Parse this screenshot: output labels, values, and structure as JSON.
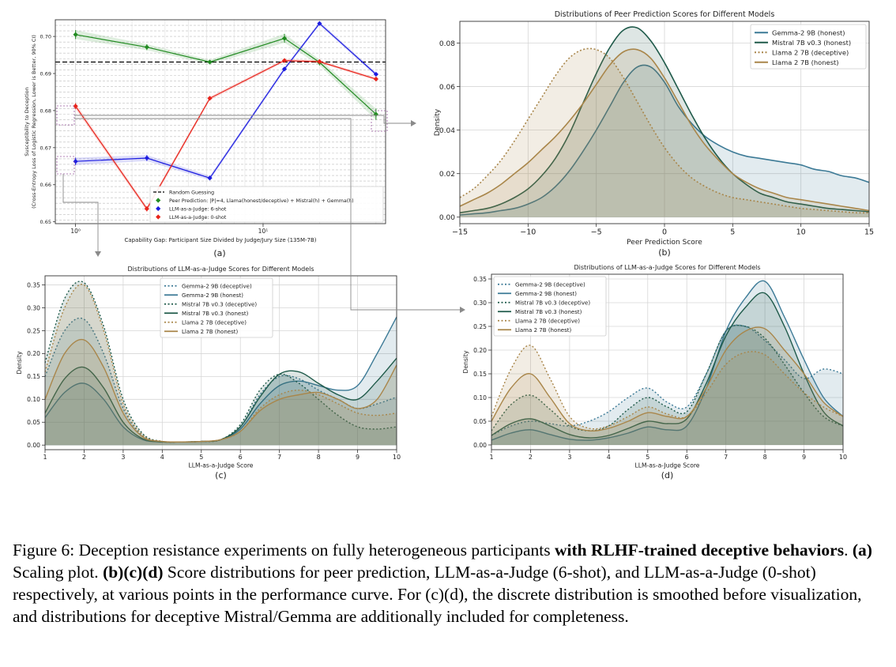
{
  "colors": {
    "green": "#228b22",
    "red": "#e8231a",
    "blue": "#1c1ce0",
    "gemma": "#3c7a96",
    "mistral": "#1f5a4a",
    "llama": "#a9864a",
    "grid": "#d6d6d6"
  },
  "chart_data": [
    {
      "id": "a",
      "type": "line",
      "panel_label": "(a)",
      "xscale": "log",
      "xlabel": "Capability Gap: Participant Size Divided by Judge/Jury Size (135M-7B)",
      "ylabel_lines": [
        "Susceptibility to Deception",
        "(Cross-Entropy Loss of Logistic Regression, Lower is Better, 90% CI)"
      ],
      "xlim": [
        0.78,
        45
      ],
      "ylim": [
        0.6495,
        0.7045
      ],
      "yticks": [
        0.65,
        0.66,
        0.67,
        0.68,
        0.69,
        0.7
      ],
      "ytick_labels": [
        "0.65",
        "0.66",
        "0.67",
        "0.68",
        "0.69",
        "0.70"
      ],
      "xticks": [
        1,
        10
      ],
      "xtick_labels": [
        "10⁰",
        "10¹"
      ],
      "random_guessing": 0.6931,
      "legend": [
        "Random Guessing",
        "Peer Prediction: |P|=4, Llama(honest/deceptive) + Mistral(h) + Gemma(h)",
        "LLM-as-a-Judge: 6-shot",
        "LLM-as-a-Judge: 0-shot"
      ],
      "series": [
        {
          "name": "Peer Prediction",
          "color": "green",
          "x": [
            1,
            2.4,
            5.2,
            13,
            20,
            40
          ],
          "values": [
            0.7005,
            0.6971,
            0.6931,
            0.6995,
            0.693,
            0.679
          ],
          "err": [
            0.0012,
            0.0008,
            0.0006,
            0.0012,
            0.0008,
            0.0015
          ]
        },
        {
          "name": "LLM-as-a-Judge: 6-shot",
          "color": "blue",
          "x": [
            1,
            2.4,
            5.2,
            13,
            20,
            40
          ],
          "values": [
            0.6663,
            0.6672,
            0.6618,
            0.6912,
            0.7035,
            0.6898
          ],
          "err": [
            0.001,
            0.0008,
            0.0006,
            0.0005,
            0.0005,
            0.0005
          ]
        },
        {
          "name": "LLM-as-a-Judge: 0-shot",
          "color": "red",
          "x": [
            1,
            2.4,
            5.2,
            13,
            20,
            40
          ],
          "values": [
            0.6812,
            0.6535,
            0.6833,
            0.6935,
            0.6932,
            0.6885
          ],
          "err": [
            0.0008,
            0.0007,
            0.0005,
            0.0004,
            0.0004,
            0.0004
          ]
        }
      ]
    },
    {
      "id": "b",
      "type": "area",
      "title": "Distributions of Peer Prediction Scores for Different Models",
      "panel_label": "(b)",
      "xlabel": "Peer Prediction Score",
      "ylabel": "Density",
      "xlim": [
        -15,
        15
      ],
      "ylim": [
        -0.003,
        0.09
      ],
      "xticks": [
        -15,
        -10,
        -5,
        0,
        5,
        10,
        15
      ],
      "xtick_labels": [
        "−15",
        "−10",
        "−5",
        "0",
        "5",
        "10",
        "15"
      ],
      "yticks": [
        0,
        0.02,
        0.04,
        0.06,
        0.08
      ],
      "ytick_labels": [
        "0.00",
        "0.02",
        "0.04",
        "0.06",
        "0.08"
      ],
      "x": [
        -15,
        -14,
        -13,
        -12,
        -11,
        -10,
        -9,
        -8,
        -7,
        -6,
        -5,
        -4,
        -3,
        -2,
        -1,
        0,
        1,
        2,
        3,
        4,
        5,
        6,
        7,
        8,
        9,
        10,
        11,
        12,
        13,
        14,
        15
      ],
      "legend_pos": "top-right",
      "series": [
        {
          "name": "Gemma-2 9B (honest)",
          "color": "gemma",
          "dash": "solid",
          "values": [
            0.001,
            0.0015,
            0.002,
            0.003,
            0.004,
            0.006,
            0.009,
            0.014,
            0.021,
            0.03,
            0.04,
            0.051,
            0.062,
            0.069,
            0.069,
            0.062,
            0.051,
            0.043,
            0.037,
            0.033,
            0.03,
            0.028,
            0.027,
            0.026,
            0.025,
            0.024,
            0.022,
            0.021,
            0.019,
            0.018,
            0.016
          ]
        },
        {
          "name": "Mistral 7B v0.3 (honest)",
          "color": "mistral",
          "dash": "solid",
          "values": [
            0.002,
            0.003,
            0.004,
            0.006,
            0.009,
            0.013,
            0.019,
            0.027,
            0.038,
            0.052,
            0.066,
            0.078,
            0.086,
            0.087,
            0.081,
            0.071,
            0.059,
            0.047,
            0.036,
            0.027,
            0.02,
            0.015,
            0.011,
            0.009,
            0.007,
            0.006,
            0.005,
            0.004,
            0.0035,
            0.003,
            0.0025
          ]
        },
        {
          "name": "Llama 2 7B (deceptive)",
          "color": "llama",
          "dash": "dotted",
          "values": [
            0.009,
            0.013,
            0.019,
            0.026,
            0.035,
            0.045,
            0.055,
            0.065,
            0.073,
            0.077,
            0.077,
            0.073,
            0.064,
            0.053,
            0.042,
            0.032,
            0.024,
            0.018,
            0.014,
            0.011,
            0.009,
            0.008,
            0.007,
            0.006,
            0.005,
            0.004,
            0.0035,
            0.003,
            0.0025,
            0.002,
            0.002
          ]
        },
        {
          "name": "Llama 2 7B (honest)",
          "color": "llama",
          "dash": "solid",
          "values": [
            0.005,
            0.008,
            0.011,
            0.015,
            0.02,
            0.025,
            0.031,
            0.037,
            0.044,
            0.052,
            0.061,
            0.07,
            0.076,
            0.077,
            0.073,
            0.064,
            0.053,
            0.042,
            0.033,
            0.026,
            0.02,
            0.016,
            0.013,
            0.011,
            0.009,
            0.008,
            0.007,
            0.006,
            0.005,
            0.004,
            0.003
          ]
        }
      ]
    },
    {
      "id": "c",
      "type": "area",
      "title": "Distributions of LLM-as-a-Judge Scores for Different Models",
      "panel_label": "(c)",
      "xlabel": "LLM-as-a-Judge Score",
      "ylabel": "Density",
      "xlim": [
        1,
        10
      ],
      "ylim": [
        -0.01,
        0.37
      ],
      "xticks": [
        1,
        2,
        3,
        4,
        5,
        6,
        7,
        8,
        9,
        10
      ],
      "xtick_labels": [
        "1",
        "2",
        "3",
        "4",
        "5",
        "6",
        "7",
        "8",
        "9",
        "10"
      ],
      "yticks": [
        0,
        0.05,
        0.1,
        0.15,
        0.2,
        0.25,
        0.3,
        0.35
      ],
      "ytick_labels": [
        "0.00",
        "0.05",
        "0.10",
        "0.15",
        "0.20",
        "0.25",
        "0.30",
        "0.35"
      ],
      "x": [
        1,
        1.5,
        2,
        2.5,
        3,
        3.5,
        4,
        4.5,
        5,
        5.5,
        6,
        6.5,
        7,
        7.5,
        8,
        8.5,
        9,
        9.5,
        10
      ],
      "legend_pos": "top-center",
      "series": [
        {
          "name": "Gemma-2 9B (deceptive)",
          "color": "gemma",
          "dash": "dotted",
          "values": [
            0.15,
            0.25,
            0.275,
            0.2,
            0.08,
            0.02,
            0.008,
            0.007,
            0.008,
            0.012,
            0.04,
            0.11,
            0.15,
            0.145,
            0.12,
            0.1,
            0.08,
            0.09,
            0.105
          ]
        },
        {
          "name": "Gemma-2 9B (honest)",
          "color": "gemma",
          "dash": "solid",
          "values": [
            0.06,
            0.115,
            0.135,
            0.1,
            0.04,
            0.012,
            0.007,
            0.007,
            0.008,
            0.012,
            0.035,
            0.09,
            0.13,
            0.14,
            0.13,
            0.12,
            0.13,
            0.2,
            0.28
          ]
        },
        {
          "name": "Mistral 7B v0.3 (deceptive)",
          "color": "mistral",
          "dash": "dotted",
          "values": [
            0.18,
            0.32,
            0.355,
            0.26,
            0.1,
            0.025,
            0.008,
            0.007,
            0.008,
            0.012,
            0.045,
            0.12,
            0.155,
            0.135,
            0.1,
            0.065,
            0.04,
            0.035,
            0.04
          ]
        },
        {
          "name": "Mistral 7B v0.3 (honest)",
          "color": "mistral",
          "dash": "solid",
          "values": [
            0.07,
            0.145,
            0.17,
            0.125,
            0.05,
            0.014,
            0.007,
            0.007,
            0.008,
            0.012,
            0.04,
            0.105,
            0.155,
            0.16,
            0.135,
            0.11,
            0.1,
            0.14,
            0.19
          ]
        },
        {
          "name": "Llama 2 7B (deceptive)",
          "color": "llama",
          "dash": "dotted",
          "values": [
            0.16,
            0.3,
            0.35,
            0.25,
            0.09,
            0.022,
            0.008,
            0.007,
            0.008,
            0.012,
            0.03,
            0.08,
            0.11,
            0.12,
            0.11,
            0.09,
            0.07,
            0.065,
            0.07
          ]
        },
        {
          "name": "Llama 2 7B (honest)",
          "color": "llama",
          "dash": "solid",
          "values": [
            0.1,
            0.2,
            0.23,
            0.17,
            0.07,
            0.018,
            0.008,
            0.007,
            0.008,
            0.012,
            0.03,
            0.075,
            0.1,
            0.11,
            0.115,
            0.1,
            0.08,
            0.1,
            0.175
          ]
        }
      ]
    },
    {
      "id": "d",
      "type": "area",
      "title": "Distributions of LLM-as-a-Judge Scores for Different Models",
      "panel_label": "(d)",
      "xlabel": "LLM-as-a-Judge Score",
      "ylabel": "Density",
      "xlim": [
        1,
        10
      ],
      "ylim": [
        -0.01,
        0.36
      ],
      "xticks": [
        1,
        2,
        3,
        4,
        5,
        6,
        7,
        8,
        9,
        10
      ],
      "xtick_labels": [
        "1",
        "2",
        "3",
        "4",
        "5",
        "6",
        "7",
        "8",
        "9",
        "10"
      ],
      "yticks": [
        0,
        0.05,
        0.1,
        0.15,
        0.2,
        0.25,
        0.3,
        0.35
      ],
      "ytick_labels": [
        "0.00",
        "0.05",
        "0.10",
        "0.15",
        "0.20",
        "0.25",
        "0.30",
        "0.35"
      ],
      "x": [
        1,
        1.5,
        2,
        2.5,
        3,
        3.5,
        4,
        4.5,
        5,
        5.5,
        6,
        6.5,
        7,
        7.5,
        8,
        8.5,
        9,
        9.5,
        10
      ],
      "legend_pos": "top-left",
      "series": [
        {
          "name": "Gemma-2 9B (deceptive)",
          "color": "gemma",
          "dash": "dotted",
          "values": [
            0.02,
            0.04,
            0.05,
            0.045,
            0.04,
            0.05,
            0.07,
            0.1,
            0.12,
            0.09,
            0.08,
            0.15,
            0.24,
            0.25,
            0.22,
            0.18,
            0.14,
            0.16,
            0.15
          ]
        },
        {
          "name": "Gemma-2 9B (honest)",
          "color": "gemma",
          "dash": "solid",
          "values": [
            0.01,
            0.025,
            0.032,
            0.022,
            0.012,
            0.01,
            0.015,
            0.025,
            0.038,
            0.032,
            0.04,
            0.12,
            0.24,
            0.31,
            0.345,
            0.27,
            0.18,
            0.1,
            0.06
          ]
        },
        {
          "name": "Mistral 7B v0.3 (deceptive)",
          "color": "mistral",
          "dash": "dotted",
          "values": [
            0.03,
            0.085,
            0.105,
            0.075,
            0.04,
            0.03,
            0.04,
            0.075,
            0.1,
            0.08,
            0.07,
            0.15,
            0.24,
            0.25,
            0.225,
            0.17,
            0.11,
            0.06,
            0.04
          ]
        },
        {
          "name": "Mistral 7B v0.3 (honest)",
          "color": "mistral",
          "dash": "solid",
          "values": [
            0.02,
            0.045,
            0.055,
            0.04,
            0.022,
            0.015,
            0.02,
            0.035,
            0.05,
            0.045,
            0.055,
            0.13,
            0.23,
            0.29,
            0.32,
            0.25,
            0.15,
            0.07,
            0.04
          ]
        },
        {
          "name": "Llama 2 7B (deceptive)",
          "color": "llama",
          "dash": "dotted",
          "values": [
            0.06,
            0.16,
            0.21,
            0.14,
            0.06,
            0.035,
            0.04,
            0.06,
            0.08,
            0.065,
            0.06,
            0.11,
            0.17,
            0.195,
            0.19,
            0.15,
            0.11,
            0.08,
            0.06
          ]
        },
        {
          "name": "Llama 2 7B (honest)",
          "color": "llama",
          "dash": "solid",
          "values": [
            0.05,
            0.12,
            0.15,
            0.1,
            0.045,
            0.03,
            0.035,
            0.05,
            0.068,
            0.06,
            0.06,
            0.12,
            0.2,
            0.24,
            0.245,
            0.2,
            0.15,
            0.09,
            0.06
          ]
        }
      ]
    }
  ],
  "caption": {
    "label": "Figure 6:",
    "text1": " Deception resistance experiments on fully heterogeneous participants ",
    "bold1": "with RLHF-trained deceptive behaviors",
    "text2": ". ",
    "bold2": "(a)",
    "text3": " Scaling plot. ",
    "bold3": "(b)(c)(d)",
    "text4": " Score distributions for peer prediction, LLM-as-a-Judge (6-shot), and LLM-as-a-Judge (0-shot) respectively, at various points in the performance curve. For (c)(d), the discrete distribution is smoothed before visualization, and distributions for deceptive Mistral/Gemma are additionally included for completeness."
  }
}
